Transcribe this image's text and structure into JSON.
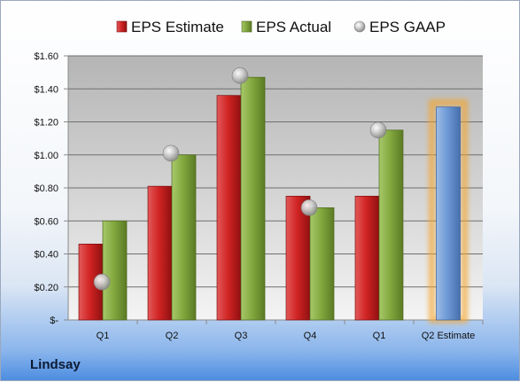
{
  "company": "Lindsay",
  "chart_data": {
    "type": "bar",
    "categories": [
      "Q1",
      "Q2",
      "Q3",
      "Q4",
      "Q1",
      "Q2 Estimate"
    ],
    "series": [
      {
        "name": "EPS Estimate",
        "values": [
          0.46,
          0.81,
          1.36,
          0.75,
          0.75,
          null
        ],
        "color": "#c81e1e"
      },
      {
        "name": "EPS Actual",
        "values": [
          0.6,
          1.0,
          1.47,
          0.68,
          1.15,
          null
        ],
        "color": "#7ba236"
      },
      {
        "name": "EPS GAAP",
        "values": [
          0.23,
          1.01,
          1.48,
          0.68,
          1.15,
          null
        ],
        "color": "#c8c8c8"
      }
    ],
    "forecast": {
      "category": "Q2 Estimate",
      "value": 1.29,
      "color": "#6f9ad6",
      "glow": "#f6a52c"
    },
    "yticks": [
      "$-",
      "$0.20",
      "$0.40",
      "$0.60",
      "$0.80",
      "$1.00",
      "$1.20",
      "$1.40",
      "$1.60"
    ],
    "ylim": [
      0,
      1.6
    ],
    "grid": true,
    "legend_position": "top"
  }
}
